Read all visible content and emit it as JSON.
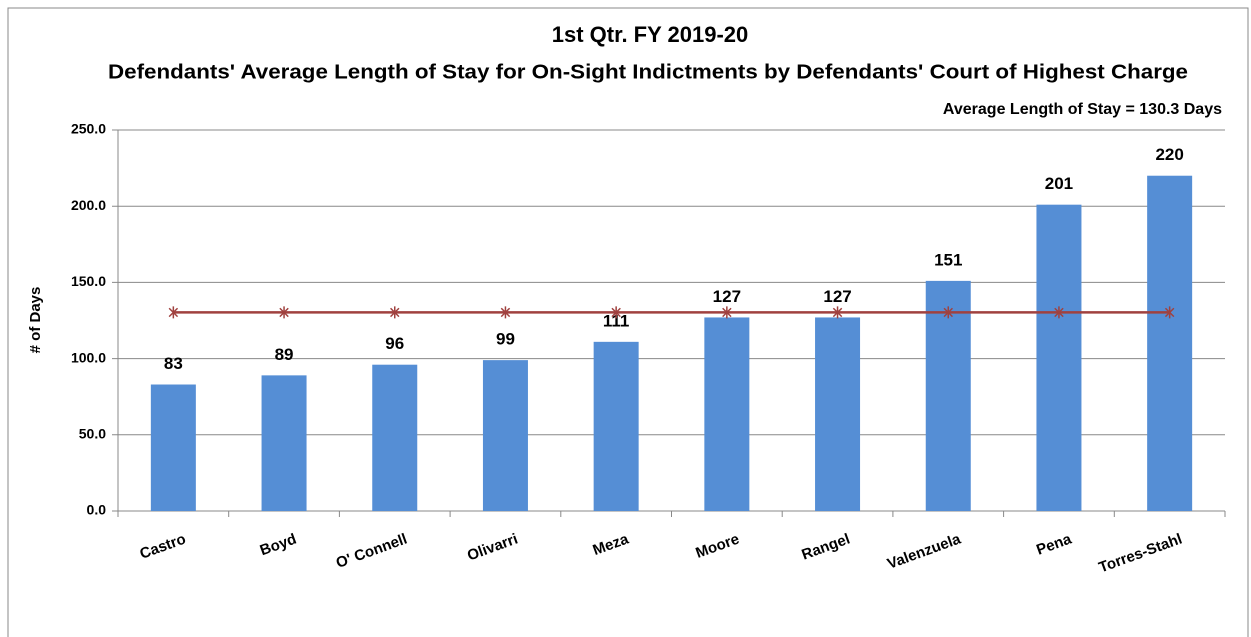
{
  "chart_data": {
    "type": "bar",
    "title": "1st Qtr. FY 2019-20",
    "subtitle": "Defendants' Average Length of Stay for On-Sight Indictments by Defendants' Court of Highest Charge",
    "annotation": "Average Length of Stay = 130.3 Days",
    "y_label": "# of Days",
    "categories": [
      "Castro",
      "Boyd",
      "O' Connell",
      "Olivarri",
      "Meza",
      "Moore",
      "Rangel",
      "Valenzuela",
      "Pena",
      "Torres-Stahl"
    ],
    "series": [
      {
        "type": "bar",
        "color": "#558ed5",
        "values": [
          83,
          89,
          96,
          99,
          111,
          127,
          127,
          151,
          201,
          220
        ]
      },
      {
        "type": "line",
        "color": "#a0413f",
        "marker": "asterisk",
        "values": [
          130.3,
          130.3,
          130.3,
          130.3,
          130.3,
          130.3,
          130.3,
          130.3,
          130.3,
          130.3
        ]
      }
    ],
    "ylim": [
      0,
      250
    ],
    "yticks": [
      {
        "value": 0,
        "label": "0.0"
      },
      {
        "value": 50,
        "label": "50.0"
      },
      {
        "value": 100,
        "label": "100.0"
      },
      {
        "value": 150,
        "label": "150.0"
      },
      {
        "value": 200,
        "label": "200.0"
      },
      {
        "value": 250,
        "label": "250.0"
      }
    ],
    "grid": true
  }
}
